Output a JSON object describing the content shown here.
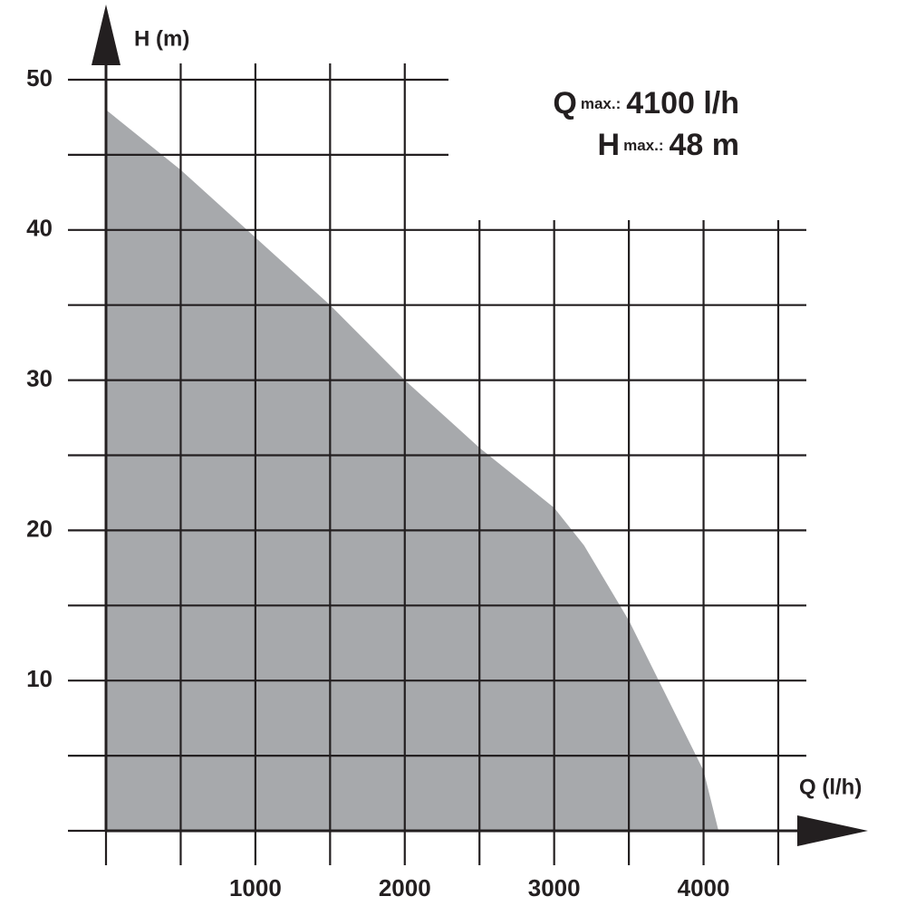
{
  "chart_data": {
    "type": "area",
    "x_label": "Q (l/h)",
    "y_label": "H (m)",
    "x": [
      0,
      500,
      1000,
      1500,
      2000,
      2500,
      3000,
      3200,
      3500,
      3800,
      4000,
      4100
    ],
    "series": [
      {
        "color": "#a7a9ac",
        "values": [
          48,
          44,
          39.5,
          35,
          30,
          25.5,
          21.5,
          19,
          14,
          8,
          4,
          0
        ]
      }
    ],
    "xlim": [
      0,
      4500
    ],
    "ylim": [
      0,
      50
    ],
    "xticks": [
      1000,
      2000,
      3000,
      4000
    ],
    "yticks": [
      10,
      20,
      30,
      40,
      50
    ],
    "xgrid": [
      0,
      500,
      1000,
      1500,
      2000,
      2500,
      3000,
      3500,
      4000,
      4500
    ],
    "ygrid": [
      0,
      5,
      10,
      15,
      20,
      25,
      30,
      35,
      40,
      45,
      50
    ],
    "annotations": [
      {
        "symbol": "Q",
        "sub": "max.:",
        "text": "4100 l/h"
      },
      {
        "symbol": "H",
        "sub": "max.:",
        "text": "48 m"
      }
    ]
  }
}
